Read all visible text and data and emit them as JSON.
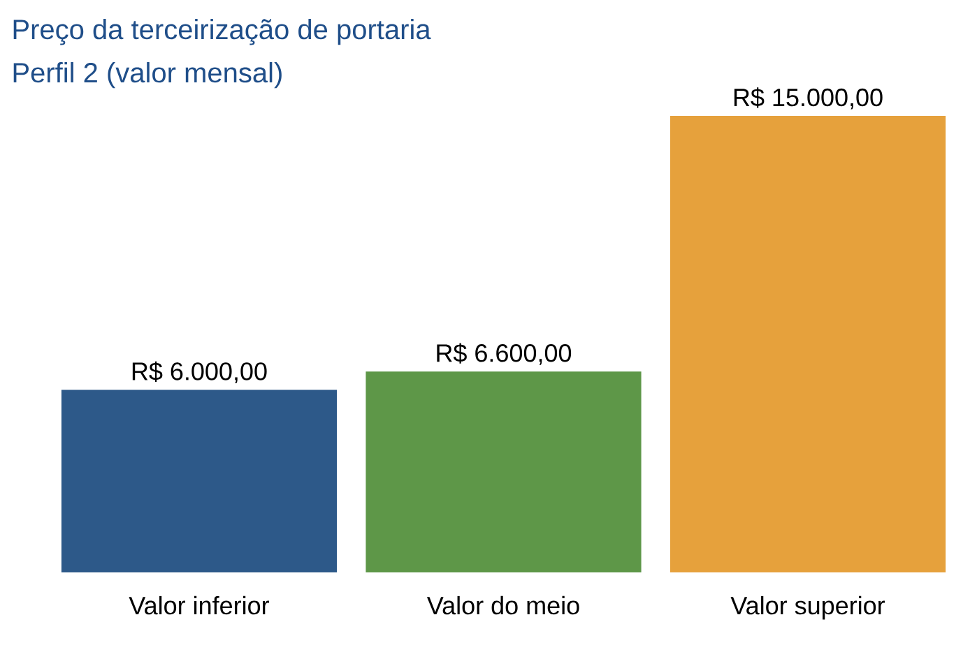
{
  "chart_data": {
    "type": "bar",
    "title": "Preço da terceirização de portaria",
    "subtitle": "Perfil 2 (valor mensal)",
    "categories": [
      "Valor inferior",
      "Valor do meio",
      "Valor superior"
    ],
    "values": [
      6000,
      6600,
      15000
    ],
    "colors": [
      "#2d5989",
      "#5e9748",
      "#e6a13c"
    ],
    "value_labels": [
      "R$ 6.000,00",
      "R$ 6.600,00",
      "R$ 15.000,00"
    ]
  }
}
